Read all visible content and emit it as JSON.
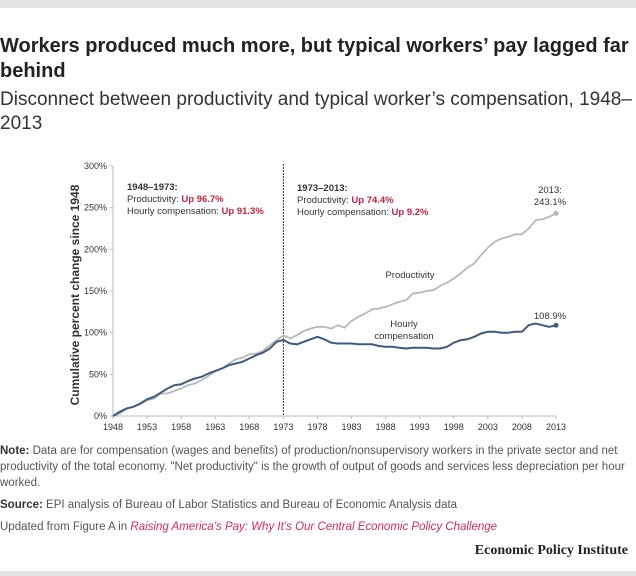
{
  "title": "Workers produced much more, but typical workers’ pay lagged far behind",
  "subtitle": "Disconnect between productivity and typical worker’s compensation, 1948–2013",
  "chart_data": {
    "type": "line",
    "ylabel": "Cumulative percent change since 1948",
    "ylim": [
      0,
      300
    ],
    "yticks": [
      "0%",
      "50%",
      "100%",
      "150%",
      "200%",
      "250%",
      "300%"
    ],
    "xticks": [
      "1948",
      "1953",
      "1958",
      "1963",
      "1968",
      "1973",
      "1978",
      "1983",
      "1988",
      "1993",
      "1998",
      "2003",
      "2008",
      "2013"
    ],
    "x_start": 1948,
    "series": [
      {
        "name": "Productivity",
        "color": "#b8b8b8",
        "values": [
          0,
          3,
          9,
          11,
          14,
          19,
          21,
          27,
          27,
          30,
          33,
          37,
          39,
          43,
          48,
          54,
          57,
          63,
          68,
          70,
          74,
          75,
          78,
          85,
          91,
          96.7,
          93,
          97,
          102,
          105,
          107,
          107,
          105,
          109,
          106,
          114,
          119,
          123,
          128,
          129,
          131,
          134,
          137,
          139,
          147,
          148,
          150,
          151,
          156,
          160,
          165,
          171,
          178,
          183,
          193,
          202,
          209,
          213,
          215,
          218,
          218,
          225,
          235,
          236,
          239,
          243.1
        ]
      },
      {
        "name": "Hourly compensation",
        "color": "#3f5b7f",
        "values": [
          0,
          5,
          9,
          11,
          15,
          20,
          23,
          28,
          33,
          37,
          38,
          42,
          45,
          47,
          51,
          54,
          57,
          61,
          63,
          65,
          69,
          73,
          76,
          81,
          89,
          91.3,
          87,
          86,
          89,
          92,
          95,
          92,
          88,
          87,
          87,
          87,
          86,
          86,
          86,
          84,
          83,
          83,
          82,
          81,
          82,
          82,
          82,
          81,
          81,
          83,
          88,
          91,
          92,
          95,
          99,
          101,
          101,
          100,
          100,
          101,
          101,
          109,
          111,
          109,
          107,
          108.9
        ]
      }
    ],
    "series_labels": {
      "productivity": "Productivity",
      "comp_line1": "Hourly",
      "comp_line2": "compensation"
    },
    "annotations": {
      "period1": {
        "heading": "1948–1973:",
        "prod_label": "Productivity: ",
        "prod_value": "Up 96.7%",
        "comp_label": "Hourly compensation: ",
        "comp_value": "Up 91.3%"
      },
      "period2": {
        "heading": "1973–2013:",
        "prod_label": "Productivity: ",
        "prod_value": "Up 74.4%",
        "comp_label": "Hourly compensation: ",
        "comp_value": "Up 9.2%"
      },
      "end_prod_line1": "2013:",
      "end_prod_line2": "243.1%",
      "end_comp": "108.9%",
      "divider_year": 1973,
      "highlight_color": "#c0243e"
    }
  },
  "notes": {
    "note_label": "Note:",
    "note_text": " Data are for compensation (wages and benefits) of production/nonsupervisory workers in the private sector and net productivity of the total economy. \"Net productivity\" is the growth of output of goods and services less depreciation per hour worked.",
    "source_label": "Source:",
    "source_text": " EPI analysis of Bureau of Labor Statistics and Bureau of Economic Analysis data",
    "updated_text": "Updated from Figure A in ",
    "updated_link": "Raising America’s Pay: Why It’s Our Central Economic Policy Challenge"
  },
  "logo": "Economic Policy Institute"
}
